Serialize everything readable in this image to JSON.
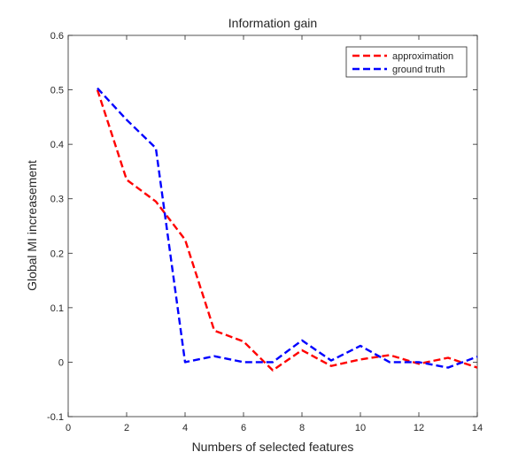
{
  "chart_data": {
    "type": "line",
    "title": "Information gain",
    "xlabel": "Numbers of selected features",
    "ylabel": "Global MI increasement",
    "xlim": [
      0,
      14
    ],
    "ylim": [
      -0.1,
      0.6
    ],
    "xticks": [
      0,
      2,
      4,
      6,
      8,
      10,
      12,
      14
    ],
    "yticks": [
      -0.1,
      0,
      0.1,
      0.2,
      0.3,
      0.4,
      0.5,
      0.6
    ],
    "xtick_labels": [
      "0",
      "2",
      "4",
      "6",
      "8",
      "10",
      "12",
      "14"
    ],
    "ytick_labels": [
      "-0.1",
      "0",
      "0.1",
      "0.2",
      "0.3",
      "0.4",
      "0.5",
      "0.6"
    ],
    "grid": false,
    "legend_position": "top-right",
    "x": [
      1,
      2,
      3,
      4,
      5,
      6,
      7,
      8,
      9,
      10,
      11,
      12,
      13,
      14
    ],
    "series": [
      {
        "name": "approximation",
        "color": "#ff0000",
        "line_style": "dashed",
        "values": [
          0.5,
          0.335,
          0.295,
          0.225,
          0.058,
          0.038,
          -0.015,
          0.022,
          -0.007,
          0.005,
          0.013,
          -0.003,
          0.008,
          -0.01
        ]
      },
      {
        "name": "ground truth",
        "color": "#0000ff",
        "line_style": "dashed",
        "values": [
          0.503,
          0.445,
          0.393,
          0.0,
          0.011,
          0.0,
          0.0,
          0.04,
          0.003,
          0.03,
          0.0,
          0.0,
          -0.01,
          0.01
        ]
      }
    ]
  }
}
